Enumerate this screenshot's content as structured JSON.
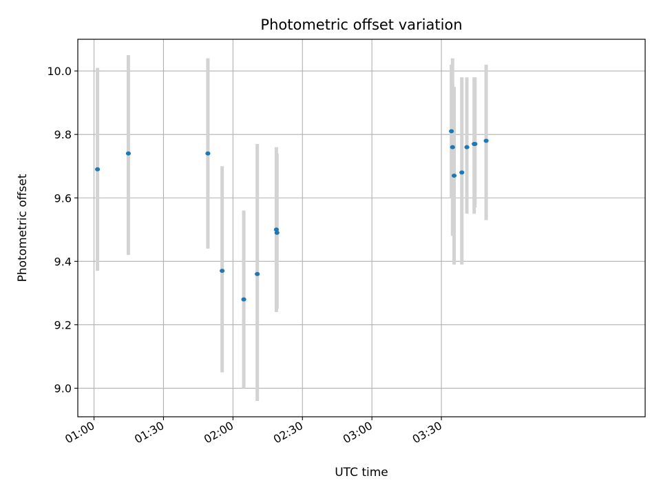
{
  "chart_data": {
    "type": "scatter",
    "title": "Photometric offset variation",
    "xlabel": "UTC time",
    "ylabel": "Photometric offset",
    "x_axis": {
      "kind": "time",
      "range": [
        "00:53",
        "04:58"
      ],
      "ticks": [
        "01:00",
        "01:30",
        "02:00",
        "02:30",
        "03:00",
        "03:30"
      ]
    },
    "y_axis": {
      "range": [
        8.91,
        10.1
      ],
      "ticks": [
        "9.0",
        "9.2",
        "9.4",
        "9.6",
        "9.8",
        "10.0"
      ]
    },
    "grid": true,
    "colors": {
      "point": "#1f77b4",
      "errorbar": "#d3d3d3",
      "grid": "#b0b0b0"
    },
    "series": [
      {
        "points": [
          {
            "x": "01:01:30",
            "y": 9.69,
            "ylow": 9.37,
            "yhigh": 10.01
          },
          {
            "x": "01:14:50",
            "y": 9.74,
            "ylow": 9.42,
            "yhigh": 10.05
          },
          {
            "x": "01:49:10",
            "y": 9.74,
            "ylow": 9.44,
            "yhigh": 10.04
          },
          {
            "x": "01:55:20",
            "y": 9.37,
            "ylow": 9.05,
            "yhigh": 9.7
          },
          {
            "x": "02:04:40",
            "y": 9.28,
            "ylow": 9.0,
            "yhigh": 9.56
          },
          {
            "x": "02:10:30",
            "y": 9.36,
            "ylow": 8.96,
            "yhigh": 9.77
          },
          {
            "x": "02:18:45",
            "y": 9.5,
            "ylow": 9.24,
            "yhigh": 9.76
          },
          {
            "x": "02:19:00",
            "y": 9.49,
            "ylow": 9.25,
            "yhigh": 9.74
          },
          {
            "x": "03:34:20",
            "y": 9.81,
            "ylow": 9.6,
            "yhigh": 10.02
          },
          {
            "x": "03:34:50",
            "y": 9.76,
            "ylow": 9.48,
            "yhigh": 10.04
          },
          {
            "x": "03:35:30",
            "y": 9.67,
            "ylow": 9.39,
            "yhigh": 9.95
          },
          {
            "x": "03:38:50",
            "y": 9.68,
            "ylow": 9.39,
            "yhigh": 9.98
          },
          {
            "x": "03:41:00",
            "y": 9.76,
            "ylow": 9.55,
            "yhigh": 9.98
          },
          {
            "x": "03:44:10",
            "y": 9.77,
            "ylow": 9.55,
            "yhigh": 9.98
          },
          {
            "x": "03:44:30",
            "y": 9.77,
            "ylow": 9.57,
            "yhigh": 9.98
          },
          {
            "x": "03:49:20",
            "y": 9.78,
            "ylow": 9.53,
            "yhigh": 10.02
          }
        ]
      }
    ]
  }
}
